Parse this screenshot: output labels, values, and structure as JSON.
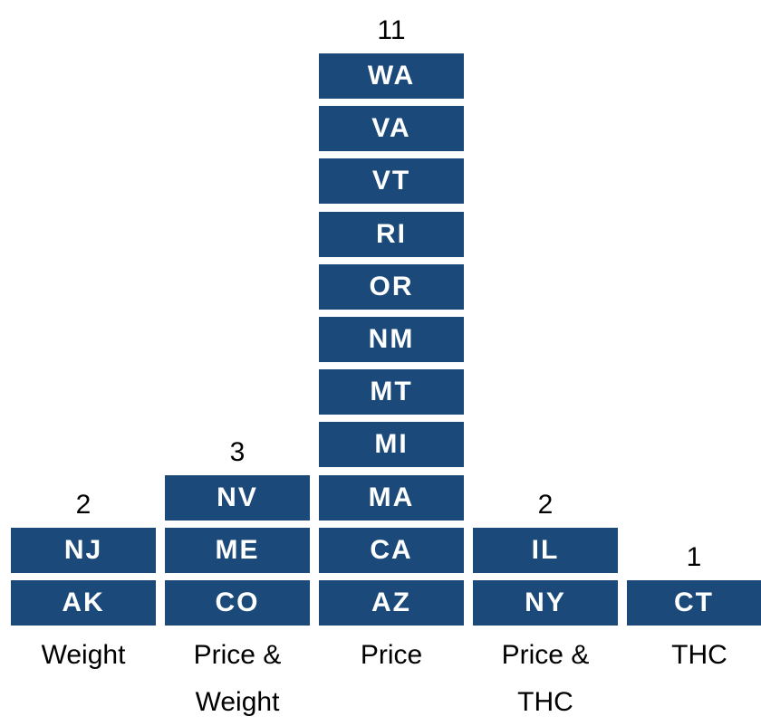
{
  "chart_data": {
    "type": "tile",
    "categories": [
      "Weight",
      "Price & Weight",
      "Price",
      "Price & THC",
      "THC"
    ],
    "values": [
      2,
      3,
      11,
      2,
      1
    ],
    "tiles": [
      [
        "AK",
        "NJ"
      ],
      [
        "CO",
        "ME",
        "NV"
      ],
      [
        "AZ",
        "CA",
        "MA",
        "MI",
        "MT",
        "NM",
        "OR",
        "RI",
        "VT",
        "VA",
        "WA"
      ],
      [
        "NY",
        "IL"
      ],
      [
        "CT"
      ]
    ],
    "color": "#1b4a7a"
  }
}
